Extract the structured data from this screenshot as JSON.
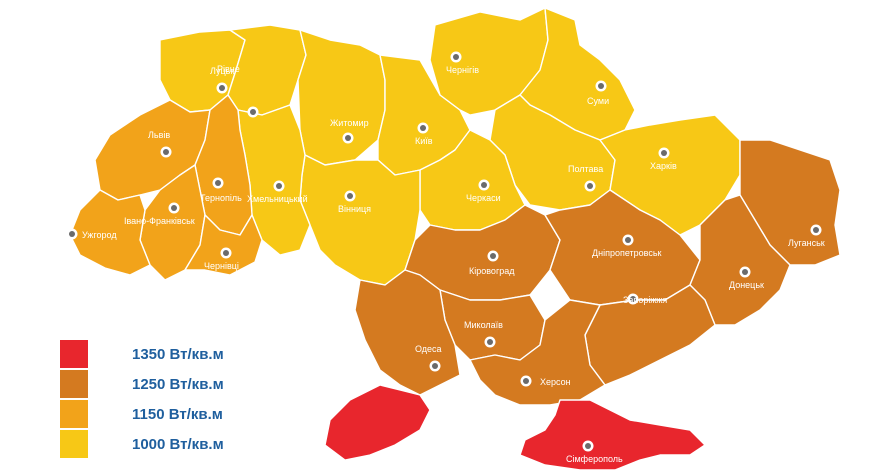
{
  "legend": {
    "items": [
      {
        "label": "1350 Вт/кв.м",
        "color": "#e8262d"
      },
      {
        "label": "1250 Вт/кв.м",
        "color": "#d47a20"
      },
      {
        "label": "1150 Вт/кв.м",
        "color": "#f2a31a"
      },
      {
        "label": "1000 Вт/кв.м",
        "color": "#f7c816"
      }
    ]
  },
  "colors": {
    "zone_1000": "#f7c816",
    "zone_1150": "#f2a31a",
    "zone_1250": "#d47a20",
    "zone_1350": "#e8262d",
    "city_dot": "#6b6b6b",
    "city_label": "#ffffff",
    "legend_text": "#1f5f9e"
  },
  "cities": [
    {
      "id": "lutsk",
      "name": "Луцьк",
      "zone": "1000"
    },
    {
      "id": "rivne",
      "name": "Рівне",
      "zone": "1000"
    },
    {
      "id": "chernihiv",
      "name": "Чернігів",
      "zone": "1000"
    },
    {
      "id": "sumy",
      "name": "Суми",
      "zone": "1000"
    },
    {
      "id": "lviv",
      "name": "Львів",
      "zone": "1150"
    },
    {
      "id": "zhytomyr",
      "name": "Житомир",
      "zone": "1000"
    },
    {
      "id": "kyiv",
      "name": "Київ",
      "zone": "1000"
    },
    {
      "id": "poltava",
      "name": "Полтава",
      "zone": "1000"
    },
    {
      "id": "kharkiv",
      "name": "Харків",
      "zone": "1000"
    },
    {
      "id": "ternopil",
      "name": "Тернопіль",
      "zone": "1150"
    },
    {
      "id": "khmelnytskyi",
      "name": "Хмельницький",
      "zone": "1000"
    },
    {
      "id": "cherkasy",
      "name": "Черкаси",
      "zone": "1000"
    },
    {
      "id": "ivano-frankivsk",
      "name": "Івано-Франківськ",
      "zone": "1150"
    },
    {
      "id": "vinnytsia",
      "name": "Вінниця",
      "zone": "1000"
    },
    {
      "id": "uzhhorod",
      "name": "Ужгород",
      "zone": "1150"
    },
    {
      "id": "chernivtsi",
      "name": "Чернівці",
      "zone": "1150"
    },
    {
      "id": "kirovohrad",
      "name": "Кіровоград",
      "zone": "1250"
    },
    {
      "id": "dnipropetrovsk",
      "name": "Дніпропетровськ",
      "zone": "1250"
    },
    {
      "id": "luhansk",
      "name": "Луганськ",
      "zone": "1250"
    },
    {
      "id": "donetsk",
      "name": "Донецьк",
      "zone": "1250"
    },
    {
      "id": "zaporizhzhia",
      "name": "Запоріжжя",
      "zone": "1250"
    },
    {
      "id": "mykolaiv",
      "name": "Миколаїв",
      "zone": "1250"
    },
    {
      "id": "odesa",
      "name": "Одеса",
      "zone": "1250"
    },
    {
      "id": "kherson",
      "name": "Херсон",
      "zone": "1250"
    },
    {
      "id": "simferopol",
      "name": "Сімферополь",
      "zone": "1350"
    }
  ]
}
